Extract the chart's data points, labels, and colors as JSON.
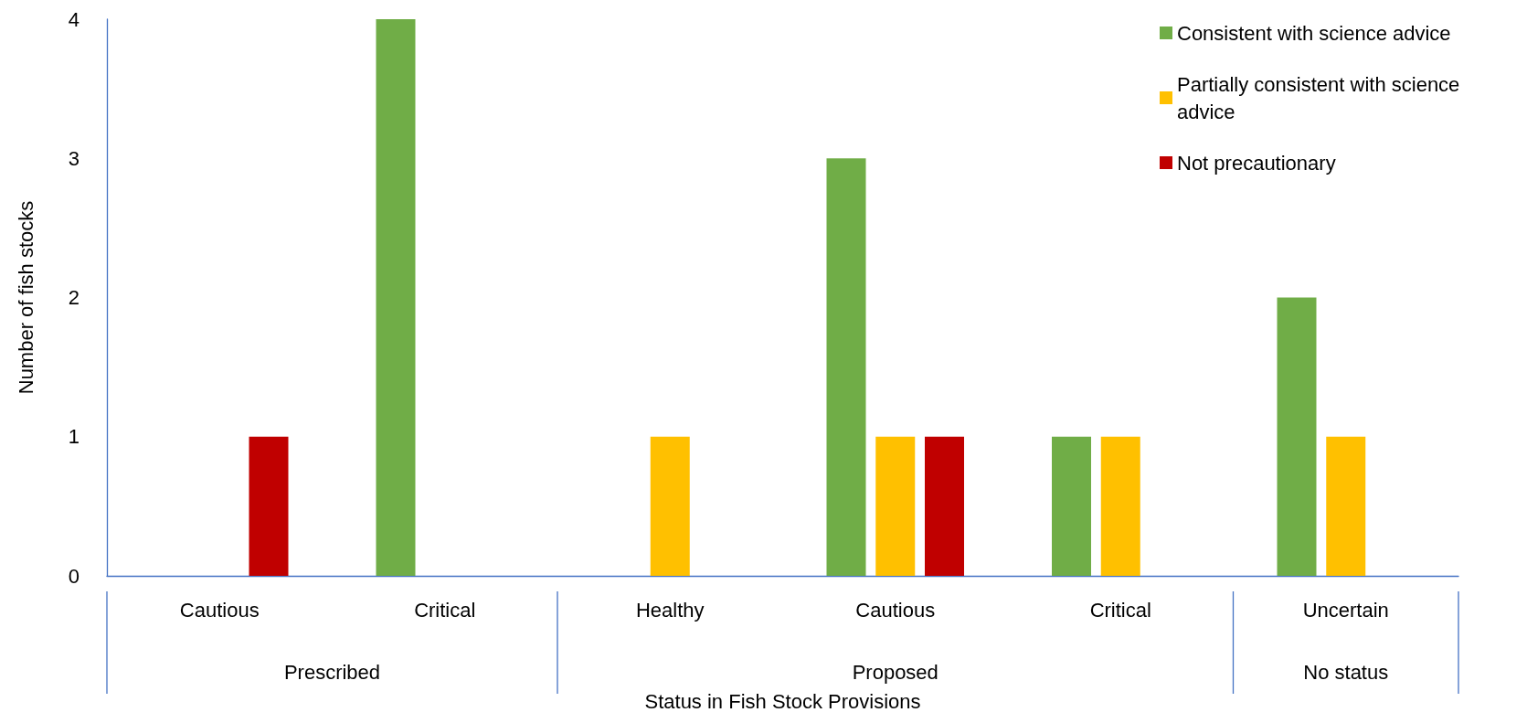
{
  "chart_data": {
    "type": "bar",
    "categories": [
      "Cautious",
      "Critical",
      "Healthy",
      "Cautious",
      "Critical",
      "Uncertain"
    ],
    "series": [
      {
        "name": "Consistent with science advice",
        "color": "#70ad47",
        "values": [
          null,
          4,
          null,
          3,
          1,
          2
        ]
      },
      {
        "name": "Partially consistent with science advice",
        "color": "#ffc000",
        "values": [
          null,
          null,
          1,
          1,
          1,
          1
        ]
      },
      {
        "name": "Not precautionary",
        "color": "#c00000",
        "values": [
          1,
          null,
          null,
          1,
          null,
          null
        ]
      }
    ],
    "xlabel": "Status in Fish Stock Provisions",
    "ylabel": "Number of fish stocks",
    "ylim": [
      0,
      4
    ],
    "yticks": [
      0,
      1,
      2,
      3,
      4
    ],
    "annotations": [
      "Prescribed",
      "Proposed",
      "No status"
    ],
    "grid": false,
    "legend": "top right"
  }
}
